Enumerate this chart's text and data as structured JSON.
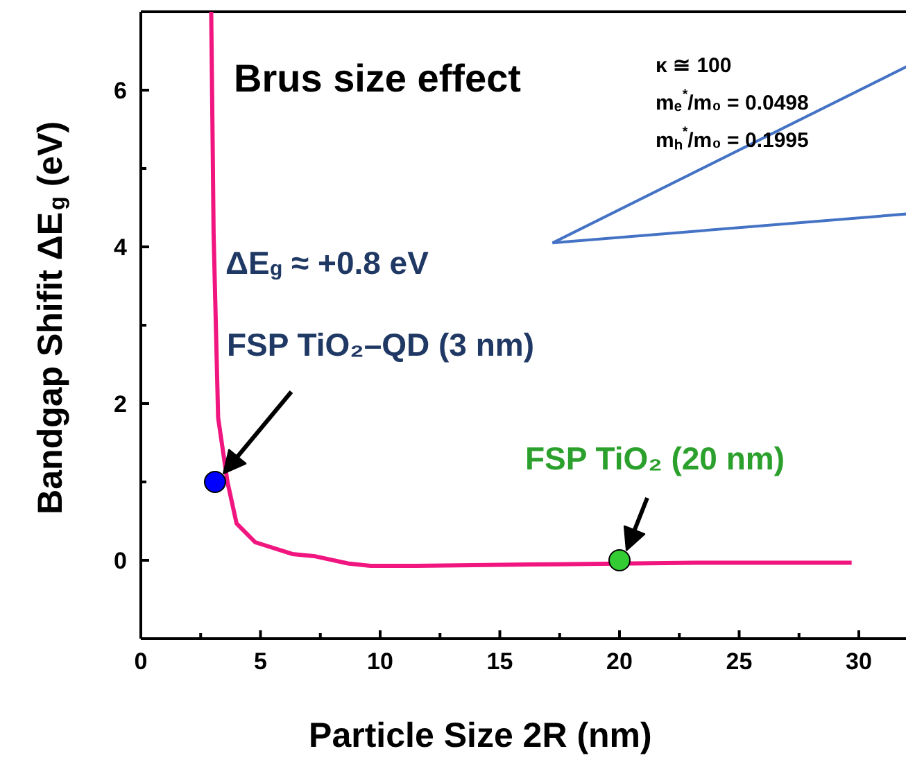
{
  "chart_data": {
    "type": "line",
    "xlabel": "Particle Size 2R (nm)",
    "ylabel": "Bandgap Shifit ΔE$_{g}$ (eV)",
    "xlim": [
      0,
      32
    ],
    "ylim": [
      -1,
      7
    ],
    "xticks": [
      0,
      5,
      10,
      15,
      20,
      25,
      30
    ],
    "yticks": [
      0,
      2,
      4,
      6
    ],
    "grid": false,
    "series": [
      {
        "color": "#f0157f",
        "x": [
          2.94,
          3.0,
          3.04,
          3.23,
          3.62,
          4.0,
          4.78,
          6.33,
          7.3,
          8.65,
          9.6,
          11.5,
          17.4,
          23.2,
          29.7
        ],
        "values": [
          7.0,
          5.36,
          4.18,
          1.82,
          1.0,
          0.47,
          0.23,
          0.08,
          0.05,
          -0.04,
          -0.07,
          -0.07,
          -0.05,
          -0.03,
          -0.03
        ]
      },
      {
        "type": "scatter",
        "color": "#0000ff",
        "x": [
          3.1
        ],
        "values": [
          1.0
        ]
      },
      {
        "type": "scatter",
        "color": "#33cc33",
        "x": [
          20
        ],
        "values": [
          0
        ]
      },
      {
        "type": "line",
        "color": "#4472c4",
        "x": [
          17.2,
          32
        ],
        "values": [
          4.05,
          6.3
        ]
      },
      {
        "type": "line",
        "color": "#4472c4",
        "x": [
          17.2,
          32
        ],
        "values": [
          4.05,
          4.42
        ]
      }
    ],
    "annotations": [
      "Brus size effect",
      "κ ≅ 100",
      "mₑ$^{*}$/m₀ = 0.0498",
      "mₕ$^{*}$/m₀ = 0.1995",
      "ΔE$_{g}$ ≈ +0.8 eV",
      {
        "text": "FSP TiO₂–QD (3 nm)",
        "x": 3.1,
        "y": 1.0
      },
      {
        "text": "FSP TiO₂ (20 nm)",
        "x": 20,
        "y": 0
      }
    ]
  }
}
